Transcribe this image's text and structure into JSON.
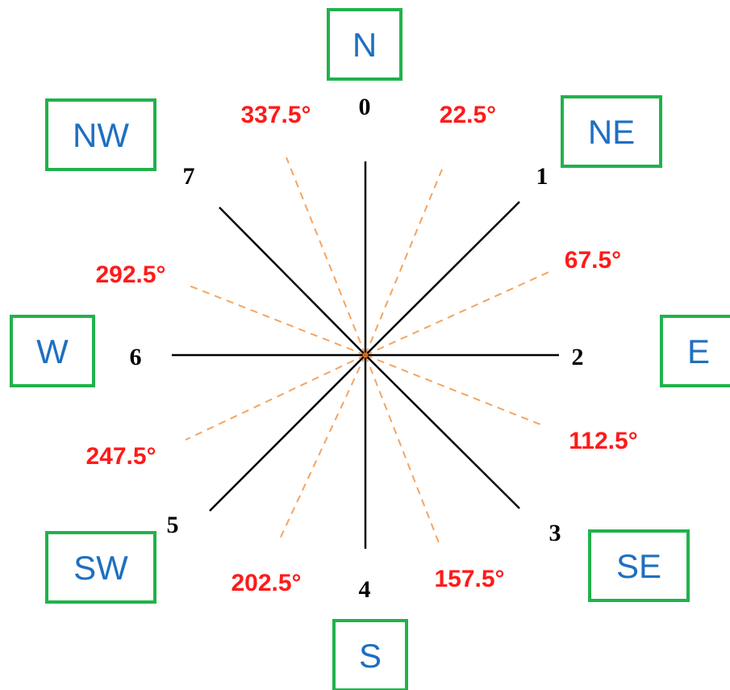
{
  "colors": {
    "box_border": "#21b24b",
    "direction_text": "#1f6fc1",
    "solid_line": "#000000",
    "dashed_line": "#f4a460",
    "angle_text": "#ff1a1a",
    "center": "#d2691e"
  },
  "directions": [
    {
      "label": "N"
    },
    {
      "label": "NE"
    },
    {
      "label": "E"
    },
    {
      "label": "SE"
    },
    {
      "label": "S"
    },
    {
      "label": "SW"
    },
    {
      "label": "W"
    },
    {
      "label": "NW"
    }
  ],
  "sector_numbers": [
    "0",
    "1",
    "2",
    "3",
    "4",
    "5",
    "6",
    "7"
  ],
  "boundary_angles": [
    "337.5°",
    "22.5°",
    "67.5°",
    "112.5°",
    "157.5°",
    "202.5°",
    "247.5°",
    "292.5°"
  ]
}
